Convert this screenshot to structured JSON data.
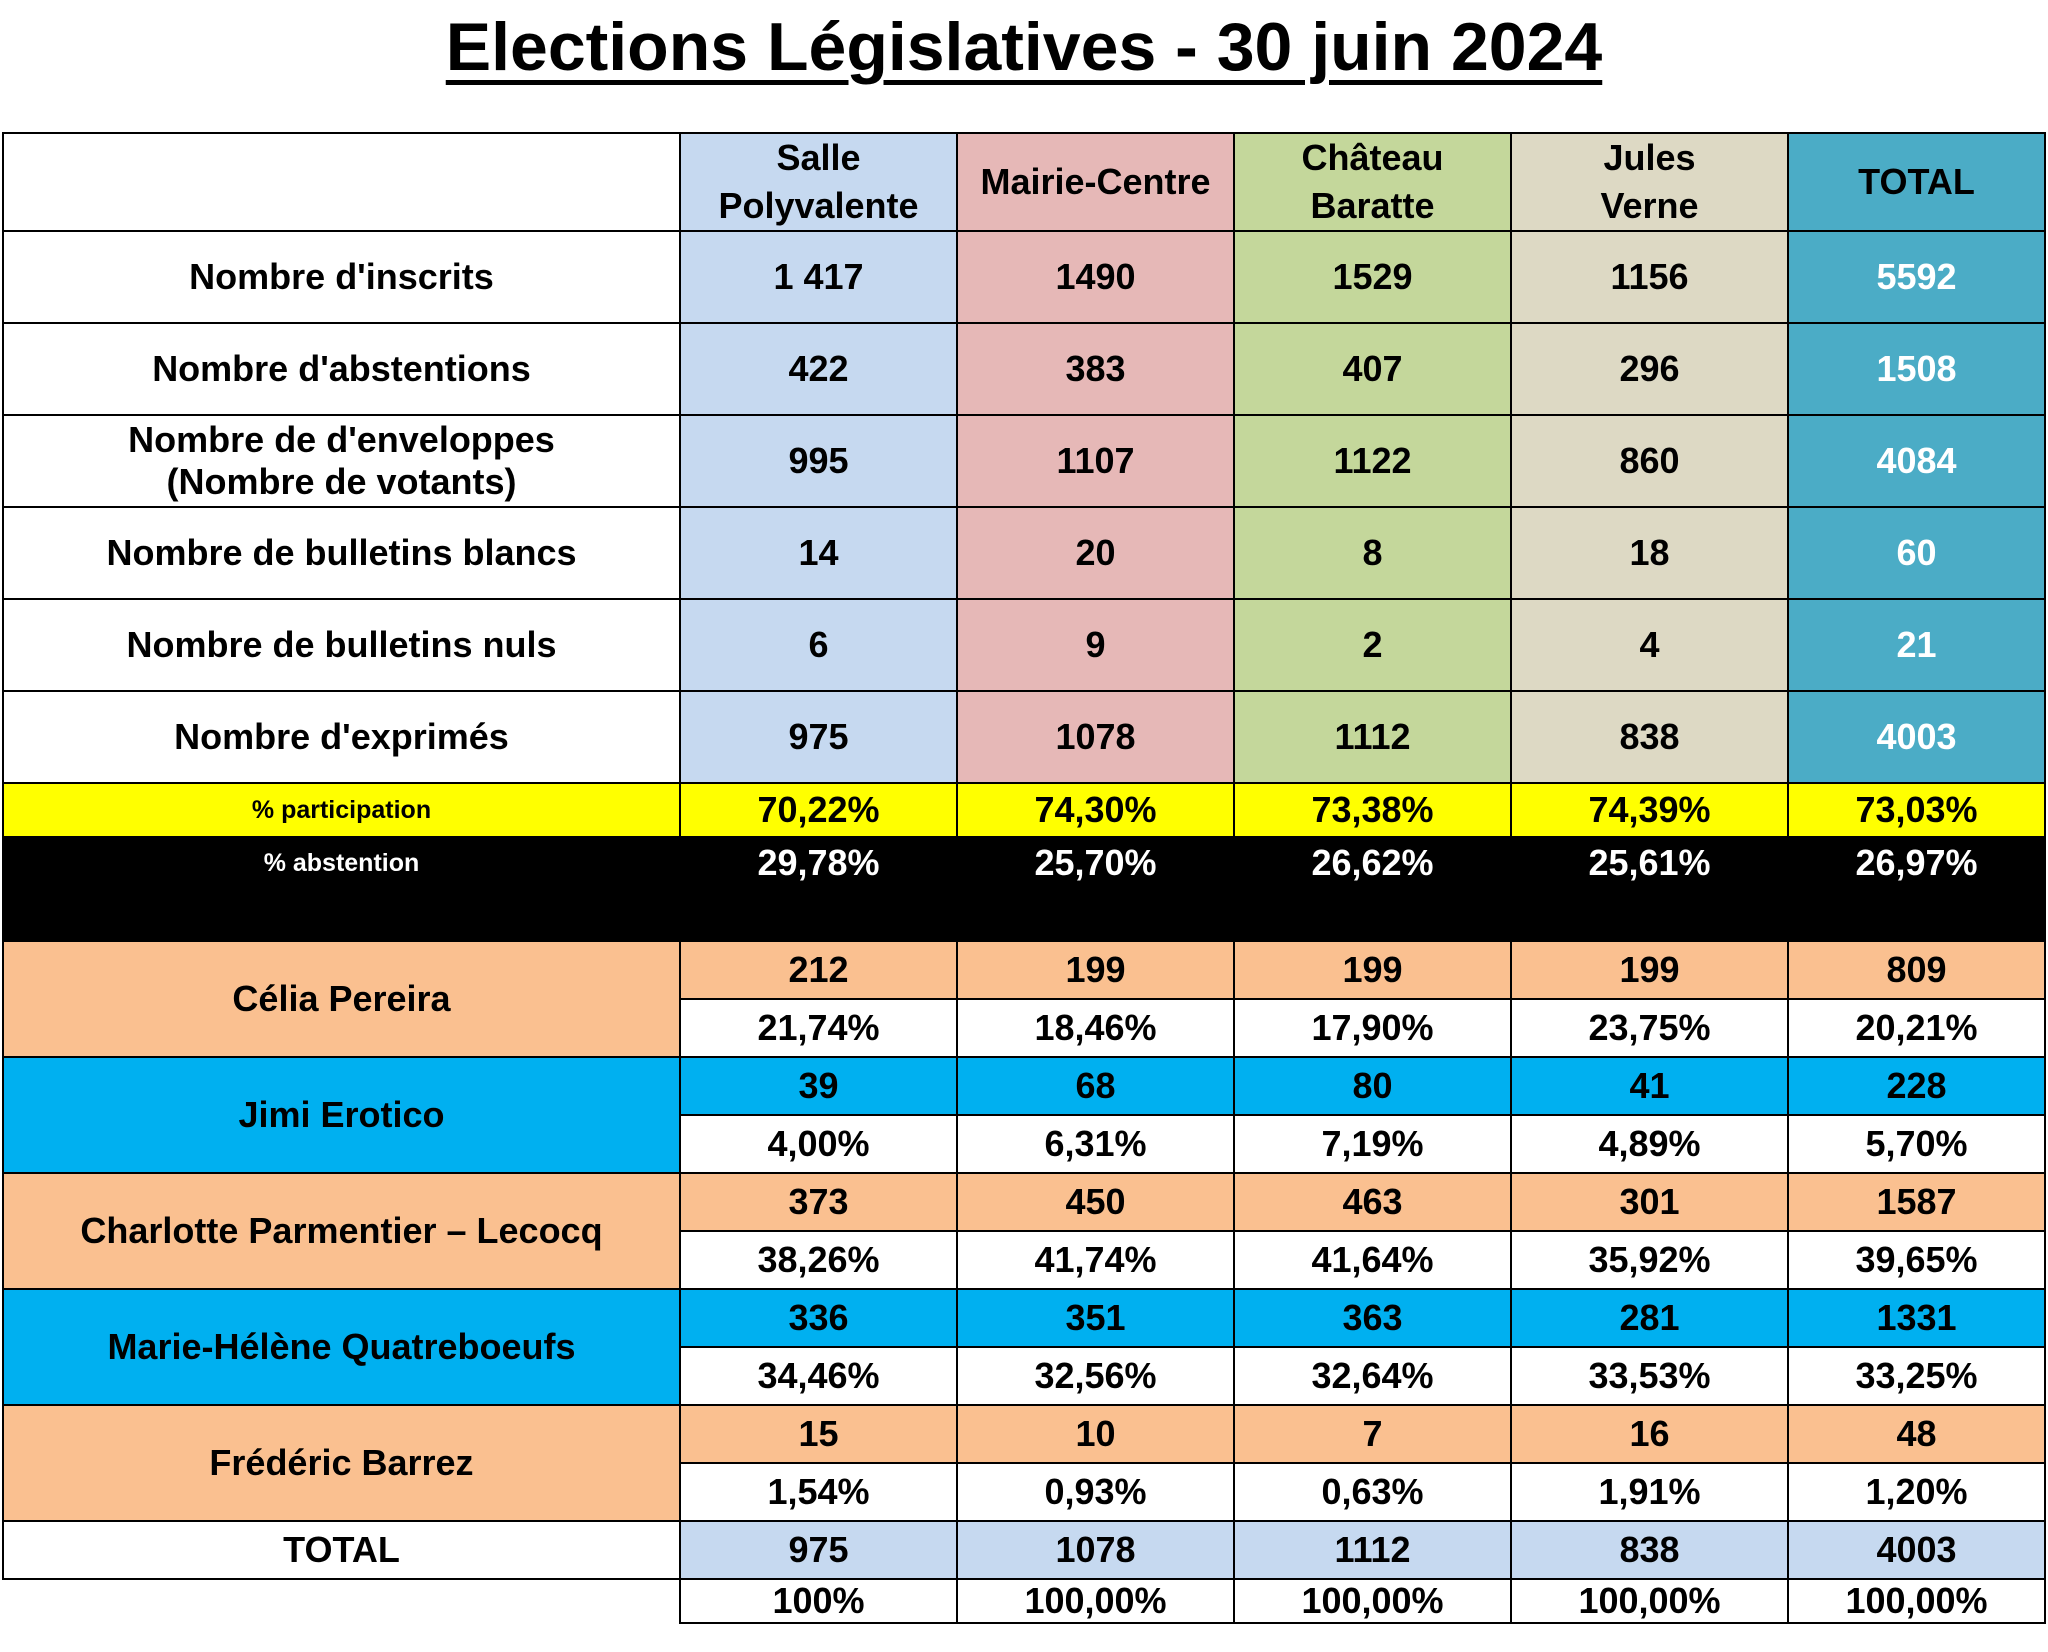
{
  "title": "Elections Législatives - 30 juin 2024",
  "colors": {
    "salle_polyvalente": "#c6d9f0",
    "mairie_centre": "#e6b8b7",
    "chateau_baratte": "#c4d79b",
    "jules_verne": "#ddd9c4",
    "total": "#4bacc6",
    "participation": "#ffff00",
    "abstention": "#000000",
    "candidate_peach": "#fac090",
    "candidate_blue": "#00b0f0"
  },
  "columns": [
    "Salle\nPolyvalente",
    "Mairie-Centre",
    "Château\nBaratte",
    "Jules\nVerne",
    "TOTAL"
  ],
  "stats": [
    {
      "label": "Nombre d'inscrits",
      "values": [
        "1 417",
        "1490",
        "1529",
        "1156",
        "5592"
      ]
    },
    {
      "label": "Nombre d'abstentions",
      "values": [
        "422",
        "383",
        "407",
        "296",
        "1508"
      ]
    },
    {
      "label": "Nombre de d'enveloppes\n(Nombre de votants)",
      "values": [
        "995",
        "1107",
        "1122",
        "860",
        "4084"
      ]
    },
    {
      "label": "Nombre de bulletins blancs",
      "values": [
        "14",
        "20",
        "8",
        "18",
        "60"
      ]
    },
    {
      "label": "Nombre de bulletins nuls",
      "values": [
        "6",
        "9",
        "2",
        "4",
        "21"
      ]
    },
    {
      "label": "Nombre d'exprimés",
      "values": [
        "975",
        "1078",
        "1112",
        "838",
        "4003"
      ]
    }
  ],
  "participation": {
    "label": "% participation",
    "values": [
      "70,22%",
      "74,30%",
      "73,38%",
      "74,39%",
      "73,03%"
    ]
  },
  "abstention": {
    "label": "% abstention",
    "values": [
      "29,78%",
      "25,70%",
      "26,62%",
      "25,61%",
      "26,97%"
    ]
  },
  "candidates": [
    {
      "name": "Célia Pereira",
      "votes": [
        "212",
        "199",
        "199",
        "199",
        "809"
      ],
      "pct": [
        "21,74%",
        "18,46%",
        "17,90%",
        "23,75%",
        "20,21%"
      ],
      "color": "peach"
    },
    {
      "name": "Jimi Erotico",
      "votes": [
        "39",
        "68",
        "80",
        "41",
        "228"
      ],
      "pct": [
        "4,00%",
        "6,31%",
        "7,19%",
        "4,89%",
        "5,70%"
      ],
      "color": "blue"
    },
    {
      "name": "Charlotte Parmentier – Lecocq",
      "votes": [
        "373",
        "450",
        "463",
        "301",
        "1587"
      ],
      "pct": [
        "38,26%",
        "41,74%",
        "41,64%",
        "35,92%",
        "39,65%"
      ],
      "color": "peach"
    },
    {
      "name": "Marie-Hélène Quatreboeufs",
      "votes": [
        "336",
        "351",
        "363",
        "281",
        "1331"
      ],
      "pct": [
        "34,46%",
        "32,56%",
        "32,64%",
        "33,53%",
        "33,25%"
      ],
      "color": "blue"
    },
    {
      "name": "Frédéric Barrez",
      "votes": [
        "15",
        "10",
        "7",
        "16",
        "48"
      ],
      "pct": [
        "1,54%",
        "0,93%",
        "0,63%",
        "1,91%",
        "1,20%"
      ],
      "color": "peach"
    }
  ],
  "total": {
    "label": "TOTAL",
    "values": [
      "975",
      "1078",
      "1112",
      "838",
      "4003"
    ],
    "pct": [
      "100%",
      "100,00%",
      "100,00%",
      "100,00%",
      "100,00%"
    ]
  }
}
